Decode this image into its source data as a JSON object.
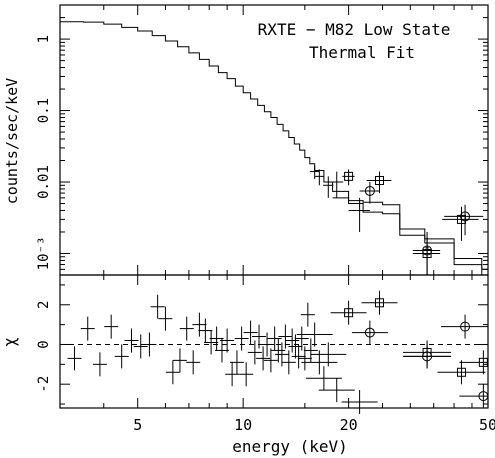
{
  "chart_data": [
    {
      "type": "line",
      "panel": "spectrum",
      "title": "RXTE − M82 Low State",
      "subtitle": "Thermal Fit",
      "xlabel": "energy (keV)",
      "ylabel": "counts/sec/keV",
      "xscale": "log",
      "yscale": "log",
      "xlim": [
        3.0,
        50.0
      ],
      "ylim": [
        0.0005,
        3.0
      ],
      "yticks": [
        {
          "value": 1,
          "label": "1"
        },
        {
          "value": 0.1,
          "label": "0.1"
        },
        {
          "value": 0.01,
          "label": "0.01"
        },
        {
          "value": 0.001,
          "label": "10⁻³"
        }
      ],
      "series": [
        {
          "style": "step-model",
          "values": [
            [
              3.0,
              1.75
            ],
            [
              3.5,
              1.73
            ],
            [
              4.0,
              1.62
            ],
            [
              4.5,
              1.46
            ],
            [
              5.0,
              1.3
            ],
            [
              5.5,
              1.12
            ],
            [
              6.0,
              0.94
            ],
            [
              6.5,
              0.78
            ],
            [
              7.0,
              0.64
            ],
            [
              7.5,
              0.52
            ],
            [
              8.0,
              0.42
            ],
            [
              8.5,
              0.34
            ],
            [
              9.0,
              0.28
            ],
            [
              9.5,
              0.22
            ],
            [
              10.0,
              0.178
            ],
            [
              10.5,
              0.145
            ],
            [
              11.0,
              0.118
            ],
            [
              11.5,
              0.096
            ],
            [
              12.0,
              0.08
            ],
            [
              12.5,
              0.064
            ],
            [
              13.0,
              0.052
            ],
            [
              13.5,
              0.042
            ],
            [
              14.0,
              0.034
            ],
            [
              14.5,
              0.028
            ],
            [
              15.0,
              0.022
            ],
            [
              15.5,
              0.018
            ],
            [
              16.0,
              0.0145
            ],
            [
              17.0,
              0.01
            ],
            [
              18.0,
              0.0074
            ],
            [
              20.0,
              0.0055
            ],
            [
              22.0,
              0.0052
            ],
            [
              25.0,
              0.0048
            ],
            [
              28.0,
              0.0022
            ],
            [
              33.0,
              0.0016
            ],
            [
              40.0,
              0.00085
            ],
            [
              48.0,
              0.0006
            ],
            [
              50.0,
              0.0006
            ]
          ]
        },
        {
          "style": "step-model",
          "values": [
            [
              18.0,
              0.006
            ],
            [
              20.0,
              0.005
            ],
            [
              22.0,
              0.0038
            ],
            [
              25.0,
              0.0036
            ],
            [
              28.0,
              0.0018
            ],
            [
              33.0,
              0.0014
            ],
            [
              40.0,
              0.0007
            ],
            [
              48.0,
              0.0005
            ],
            [
              50.0,
              0.0005
            ]
          ]
        },
        {
          "style": "data-crosses",
          "points": [
            [
              16.0,
              0.014,
              0.5,
              0.003
            ],
            [
              16.5,
              0.012,
              0.5,
              0.003
            ],
            [
              17.5,
              0.009,
              0.6,
              0.003
            ],
            [
              18.5,
              0.01,
              0.8,
              0.004
            ],
            [
              21.5,
              0.004,
              1.5,
              0.002
            ],
            [
              33.5,
              0.0012,
              0.4,
              0.0008
            ]
          ]
        },
        {
          "style": "data-squares",
          "points": [
            [
              20.0,
              0.012,
              0.8,
              0.003
            ],
            [
              24.5,
              0.0105,
              2.0,
              0.0035
            ],
            [
              33.5,
              0.001,
              3.0,
              0.0006
            ],
            [
              42.0,
              0.003,
              5.0,
              0.0015
            ]
          ]
        },
        {
          "style": "data-circles",
          "points": [
            [
              23.0,
              0.0075,
              1.5,
              0.0025
            ],
            [
              33.5,
              0.0011,
              3.0,
              0.0006
            ],
            [
              43.0,
              0.0033,
              5.5,
              0.0015
            ]
          ]
        }
      ]
    },
    {
      "type": "scatter",
      "panel": "residuals",
      "xlabel": "energy (keV)",
      "ylabel": "χ",
      "xscale": "log",
      "xlim": [
        3.0,
        50.0
      ],
      "ylim": [
        -3.2,
        3.5
      ],
      "xticks": [
        5,
        10,
        20,
        50
      ],
      "yticks": [
        -2,
        0,
        2
      ],
      "zero_line": "dashed",
      "series": [
        {
          "style": "crosses",
          "points": [
            [
              3.3,
              -0.7
            ],
            [
              3.6,
              0.8
            ],
            [
              3.9,
              -1.0
            ],
            [
              4.2,
              0.9
            ],
            [
              4.5,
              -0.6
            ],
            [
              4.8,
              0.2
            ],
            [
              5.1,
              -0.1
            ],
            [
              5.4,
              0.0
            ],
            [
              5.7,
              1.9
            ],
            [
              6.0,
              1.3
            ],
            [
              6.3,
              -1.4
            ],
            [
              6.6,
              -0.8
            ],
            [
              6.9,
              0.8
            ],
            [
              7.2,
              -0.9
            ],
            [
              7.5,
              1.0
            ],
            [
              7.8,
              0.7
            ],
            [
              8.1,
              0.1
            ],
            [
              8.4,
              0.3
            ],
            [
              8.7,
              -0.3
            ],
            [
              9.0,
              0.2
            ],
            [
              9.3,
              -1.5
            ],
            [
              9.6,
              -0.9
            ],
            [
              9.9,
              0.3
            ],
            [
              10.2,
              -1.5
            ],
            [
              10.5,
              0.6
            ],
            [
              10.8,
              -0.4
            ],
            [
              11.1,
              0.4
            ],
            [
              11.4,
              -0.7
            ],
            [
              11.7,
              0.0
            ],
            [
              12.0,
              -0.8
            ],
            [
              12.3,
              0.3
            ],
            [
              12.6,
              -0.3
            ],
            [
              12.9,
              -0.5
            ],
            [
              13.2,
              0.4
            ],
            [
              13.5,
              -0.9
            ],
            [
              13.8,
              0.2
            ],
            [
              14.1,
              -0.1
            ],
            [
              14.4,
              -0.6
            ],
            [
              14.7,
              0.3
            ],
            [
              15.0,
              -0.7
            ],
            [
              15.3,
              1.5
            ],
            [
              15.6,
              -0.3
            ],
            [
              16.0,
              0.5
            ],
            [
              16.5,
              -0.9
            ],
            [
              17.0,
              -1.7
            ],
            [
              17.5,
              -0.5
            ],
            [
              18.5,
              -2.3
            ],
            [
              21.5,
              -2.9
            ],
            [
              33.5,
              -0.6
            ]
          ]
        },
        {
          "style": "squares",
          "points": [
            [
              20.0,
              1.6
            ],
            [
              24.5,
              2.1
            ],
            [
              33.5,
              -0.4
            ],
            [
              42.0,
              -1.4
            ],
            [
              48.5,
              -0.9
            ]
          ]
        },
        {
          "style": "circles",
          "points": [
            [
              23.0,
              0.6
            ],
            [
              33.5,
              -0.6
            ],
            [
              43.0,
              0.9
            ],
            [
              48.5,
              -2.6
            ]
          ]
        }
      ]
    }
  ]
}
